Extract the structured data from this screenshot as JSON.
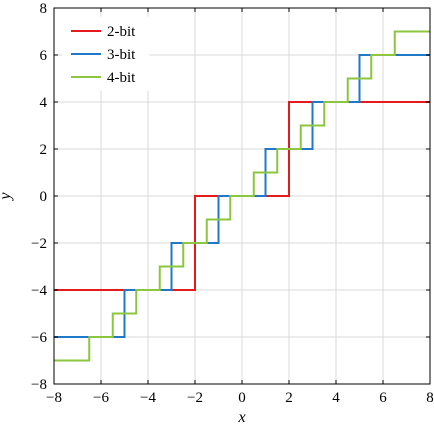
{
  "chart_data": {
    "type": "line",
    "xlabel": "x",
    "ylabel": "y",
    "xlim": [
      -8,
      8
    ],
    "ylim": [
      -8,
      8
    ],
    "grid": true,
    "legend_position": "top-left",
    "x_ticks": [
      -8,
      -6,
      -4,
      -2,
      0,
      2,
      4,
      6,
      8
    ],
    "y_ticks": [
      -8,
      -6,
      -4,
      -2,
      0,
      2,
      4,
      6,
      8
    ],
    "series": [
      {
        "name": "2-bit",
        "color": "#e41a1c",
        "x": [
          -8,
          -2,
          -2,
          2,
          2,
          8
        ],
        "y": [
          -4,
          -4,
          0,
          0,
          4,
          4
        ]
      },
      {
        "name": "3-bit",
        "color": "#1f78c8",
        "x": [
          -8,
          -5,
          -5,
          -3,
          -3,
          -1,
          -1,
          1,
          1,
          3,
          3,
          5,
          5,
          8
        ],
        "y": [
          -6,
          -6,
          -4,
          -4,
          -2,
          -2,
          0,
          0,
          2,
          2,
          4,
          4,
          6,
          6
        ]
      },
      {
        "name": "4-bit",
        "color": "#8cc63f",
        "x": [
          -8,
          -6.5,
          -6.5,
          -5.5,
          -5.5,
          -4.5,
          -4.5,
          -3.5,
          -3.5,
          -2.5,
          -2.5,
          -1.5,
          -1.5,
          -0.5,
          -0.5,
          0.5,
          0.5,
          1.5,
          1.5,
          2.5,
          2.5,
          3.5,
          3.5,
          4.5,
          4.5,
          5.5,
          5.5,
          6.5,
          6.5,
          8
        ],
        "y": [
          -7,
          -7,
          -6,
          -6,
          -5,
          -5,
          -4,
          -4,
          -3,
          -3,
          -2,
          -2,
          -1,
          -1,
          0,
          0,
          1,
          1,
          2,
          2,
          3,
          3,
          4,
          4,
          5,
          5,
          6,
          6,
          7,
          7
        ]
      }
    ]
  }
}
